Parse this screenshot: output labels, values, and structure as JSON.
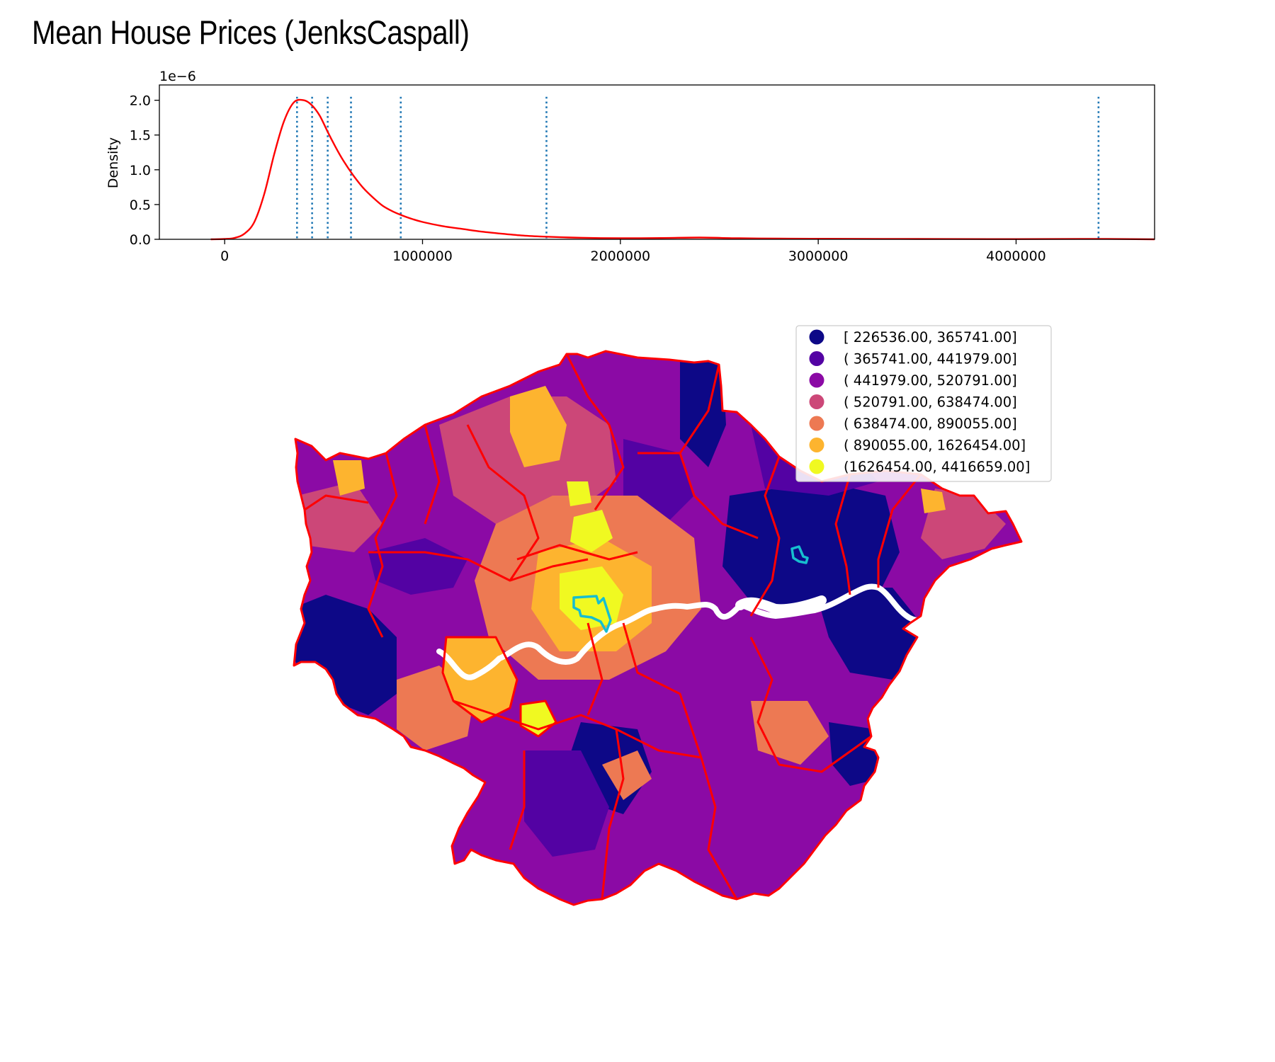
{
  "title": "Mean House Prices (JenksCaspall)",
  "colors": {
    "kde_line": "#ff0000",
    "break_lines": "#1f77b4",
    "borough_border": "#ff0000",
    "highlight_border": "#17becf",
    "river": "#ffffff"
  },
  "chart_data": [
    {
      "type": "line",
      "title": "",
      "xlabel": "",
      "ylabel": "Density",
      "y_offset_label": "1e−6",
      "xlim": [
        -330000,
        4700000
      ],
      "ylim": [
        0,
        2.22
      ],
      "x_ticks": [
        0,
        1000000,
        2000000,
        3000000,
        4000000
      ],
      "x_tick_labels": [
        "0",
        "1000000",
        "2000000",
        "3000000",
        "4000000"
      ],
      "y_ticks": [
        0.0,
        0.5,
        1.0,
        1.5,
        2.0
      ],
      "y_tick_labels": [
        "0.0",
        "0.5",
        "1.0",
        "1.5",
        "2.0"
      ],
      "y_scale_factor": "1e-6",
      "series": [
        {
          "style": "solid",
          "x": [
            -70000,
            0,
            50000,
            100000,
            150000,
            200000,
            250000,
            300000,
            350000,
            400000,
            440000,
            480000,
            520000,
            560000,
            600000,
            650000,
            700000,
            750000,
            800000,
            850000,
            900000,
            950000,
            1000000,
            1100000,
            1200000,
            1300000,
            1400000,
            1500000,
            1600000,
            1700000,
            1800000,
            2000000,
            2200000,
            2400000,
            2600000,
            2800000,
            3000000,
            3500000,
            4000000,
            4400000,
            4700000
          ],
          "y": [
            0.0,
            0.005,
            0.02,
            0.08,
            0.25,
            0.65,
            1.22,
            1.7,
            1.97,
            2.0,
            1.93,
            1.78,
            1.55,
            1.33,
            1.13,
            0.92,
            0.74,
            0.6,
            0.48,
            0.4,
            0.34,
            0.29,
            0.25,
            0.19,
            0.15,
            0.11,
            0.08,
            0.055,
            0.04,
            0.03,
            0.022,
            0.016,
            0.018,
            0.025,
            0.015,
            0.01,
            0.008,
            0.005,
            0.003,
            0.006,
            0.0
          ]
        }
      ],
      "class_breaks": [
        365741,
        441979,
        520791,
        638474,
        890055,
        1626454,
        4416659
      ],
      "break_line_style": "dotted"
    },
    {
      "type": "choropleth",
      "title": "",
      "scheme": "JenksCaspall",
      "cmap": "plasma",
      "legend_position": "top-right",
      "classes": [
        {
          "label": "[ 226536.00,  365741.00]",
          "color": "#0d0887"
        },
        {
          "label": "( 365741.00,  441979.00]",
          "color": "#5302a3"
        },
        {
          "label": "( 441979.00,  520791.00]",
          "color": "#8b0aa5"
        },
        {
          "label": "( 520791.00,  638474.00]",
          "color": "#cc4778"
        },
        {
          "label": "( 638474.00,  890055.00]",
          "color": "#ed7953"
        },
        {
          "label": "( 890055.00, 1626454.00]",
          "color": "#fdb42f"
        },
        {
          "label": "(1626454.00, 4416659.00]",
          "color": "#f0f921"
        }
      ]
    }
  ]
}
